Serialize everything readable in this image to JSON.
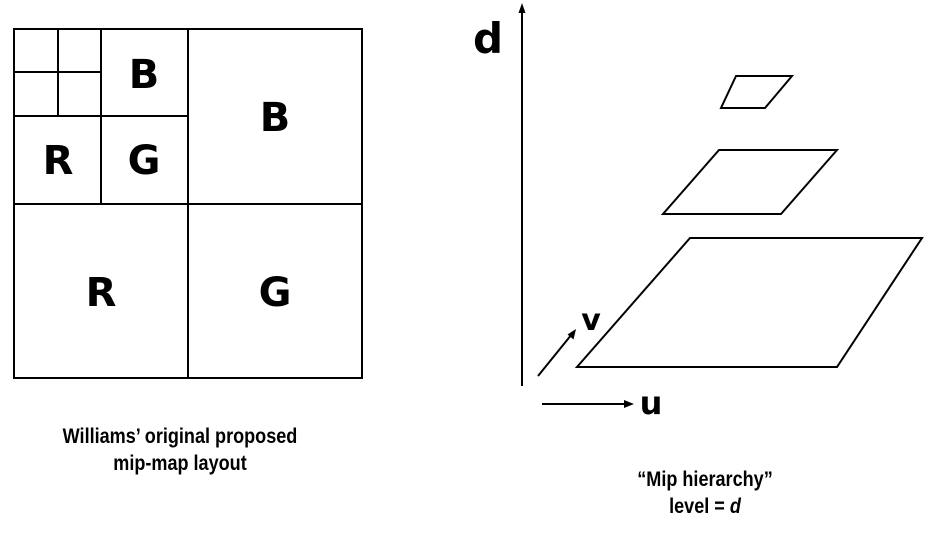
{
  "mipmap_layout": {
    "labels": {
      "small_b": "B",
      "small_r": "R",
      "small_g": "G",
      "large_b": "B",
      "large_r": "R",
      "large_g": "G"
    },
    "caption_line1": "Williams’ original proposed",
    "caption_line2": "mip-map layout"
  },
  "hierarchy": {
    "axis_d": "d",
    "axis_u": "u",
    "axis_v": "v",
    "caption_line1": "“Mip hierarchy”",
    "caption_line2_prefix": "level = ",
    "caption_line2_var": "d"
  }
}
